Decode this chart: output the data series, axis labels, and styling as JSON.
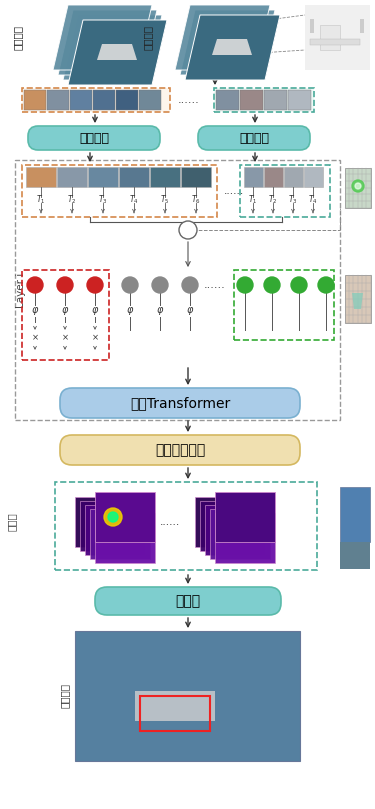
{
  "bg_color": "#ffffff",
  "patch_embed_color": "#7ecece",
  "vit_box_color": "#aacce8",
  "fusion_box_color": "#f0e0b0",
  "head_box_color": "#7ecece",
  "outer_dash_color": "#999999",
  "template_patch_border": "#d4884a",
  "search_patch_border": "#4aaa9a",
  "red_token": "#cc2222",
  "gray_token": "#888888",
  "green_token": "#33aa33",
  "layer_label": "Layer i",
  "patch_embed_label": "补丁嵌入",
  "vit_label": "视觉Transformer",
  "fusion_label": "特征聚合模块",
  "head_label": "预测头",
  "template_label": "模板图像",
  "search_label": "搜索图像",
  "feat_label": "特征层",
  "result_label": "预测结果",
  "img_bg_color": "#4a7a90",
  "drone_bg": "#e8e8e8"
}
